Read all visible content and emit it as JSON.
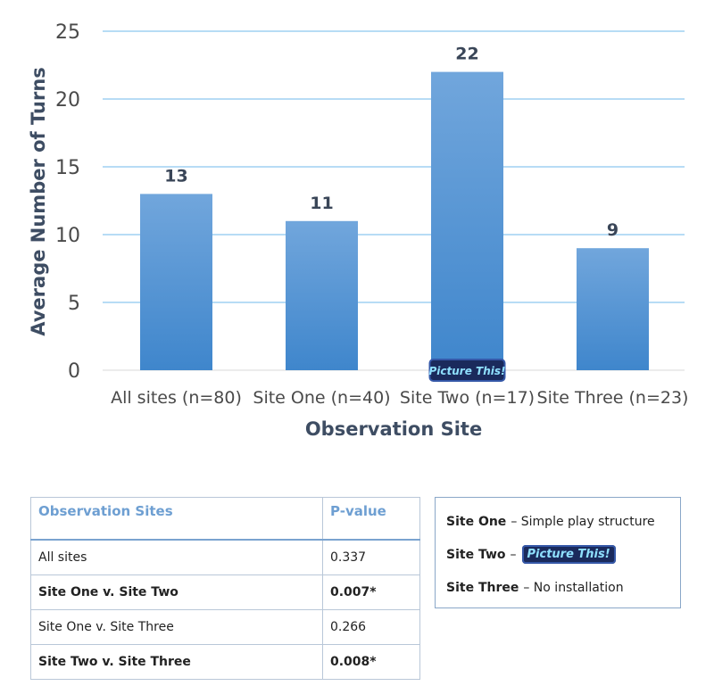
{
  "chart_data": {
    "type": "bar",
    "categories": [
      "All sites (n=80)",
      "Site One (n=40)",
      "Site Two (n=17)",
      "Site Three (n=23)"
    ],
    "values": [
      13,
      11,
      22,
      9
    ],
    "data_labels": [
      "13",
      "11",
      "22",
      "9"
    ],
    "xlabel": "Observation Site",
    "ylabel": "Average Number of Turns",
    "ylim": [
      0,
      25
    ],
    "yticks": [
      0,
      5,
      10,
      15,
      20,
      25
    ],
    "grid": true,
    "bar_color": "#5b9bd5",
    "grid_color": "#bfe0f7",
    "badge_text": "Picture This!"
  },
  "table": {
    "headers": [
      "Observation Sites",
      "P-value"
    ],
    "rows": [
      {
        "site": "All sites",
        "p": "0.337",
        "bold": false
      },
      {
        "site": "Site One v. Site Two",
        "p": "0.007*",
        "bold": true
      },
      {
        "site": "Site One v. Site Three",
        "p": "0.266",
        "bold": false
      },
      {
        "site": "Site Two v. Site Three",
        "p": "0.008*",
        "bold": true
      }
    ]
  },
  "legend": {
    "site_one_name": "Site One",
    "site_one_desc": "– Simple play structure",
    "site_two_name": "Site Two",
    "site_two_desc": "–",
    "site_two_badge": "Picture This!",
    "site_three_name": "Site Three",
    "site_three_desc": "– No installation"
  }
}
